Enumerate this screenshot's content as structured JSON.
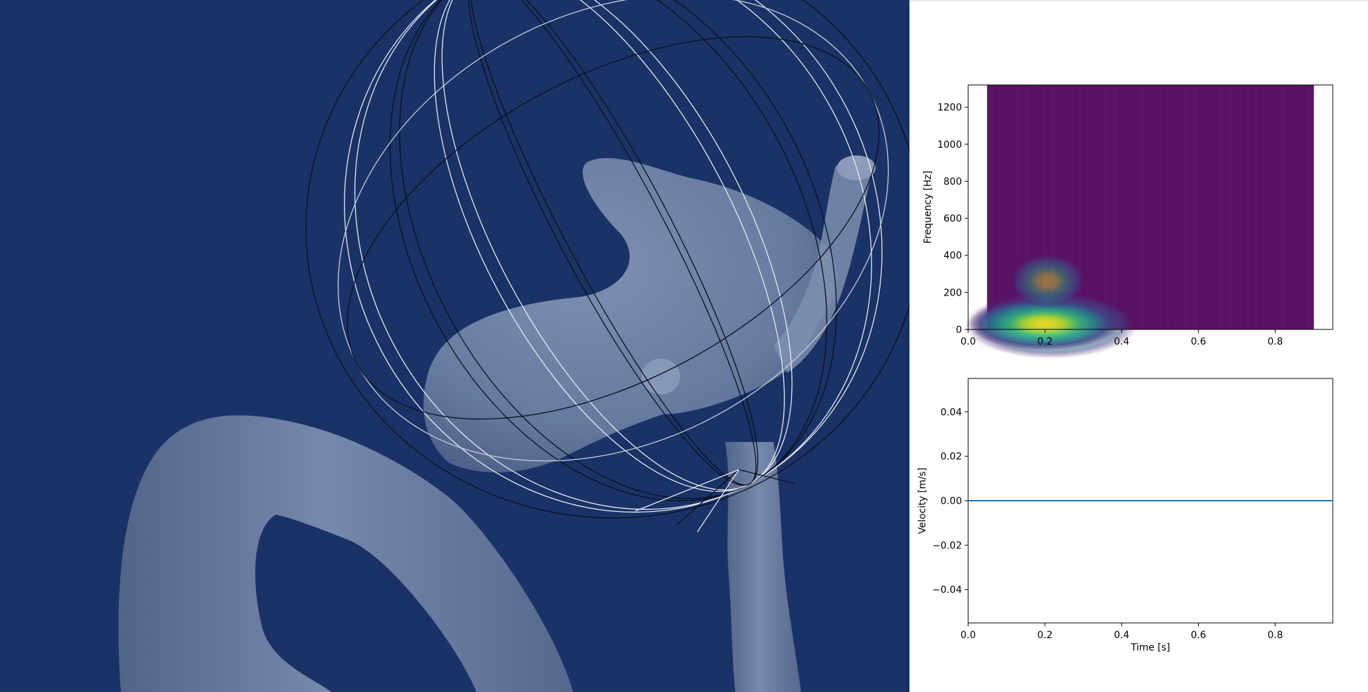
{
  "colors": {
    "viewport_background": "#1a3266",
    "vessel_surface": "#6b7fa3",
    "wireframe_light": "#e8ecf4",
    "wireframe_dark": "#0a0f1c",
    "velocity_line": "#1f77b4",
    "spectrogram_background": "#5a1466"
  },
  "viewport": {
    "object": "vessel-aneurysm-model",
    "widget": "sphere-wireframe"
  },
  "chart_data": [
    {
      "type": "heatmap",
      "title": "",
      "xlabel": "",
      "ylabel": "Frequency [Hz]",
      "xlim": [
        0.0,
        0.95
      ],
      "ylim": [
        0,
        1320
      ],
      "xticks": [
        "0.0",
        "0.2",
        "0.4",
        "0.6",
        "0.8"
      ],
      "yticks": [
        "0",
        "200",
        "400",
        "600",
        "800",
        "1000",
        "1200"
      ],
      "time_range": [
        0.05,
        0.9
      ],
      "colormap": "viridis",
      "energy_region": {
        "time_start": 0.05,
        "time_peak": 0.18,
        "time_end": 0.5,
        "max_frequency": 400
      }
    },
    {
      "type": "line",
      "title": "",
      "xlabel": "Time [s]",
      "ylabel": "Velocity [m/s]",
      "xlim": [
        0.0,
        0.95
      ],
      "ylim": [
        -0.055,
        0.055
      ],
      "xticks": [
        "0.0",
        "0.2",
        "0.4",
        "0.6",
        "0.8"
      ],
      "yticks": [
        "−0.04",
        "−0.02",
        "0.00",
        "0.02",
        "0.04"
      ],
      "series": [
        {
          "x": [
            0.0,
            0.95
          ],
          "values": [
            0.0,
            0.0
          ]
        }
      ]
    }
  ]
}
